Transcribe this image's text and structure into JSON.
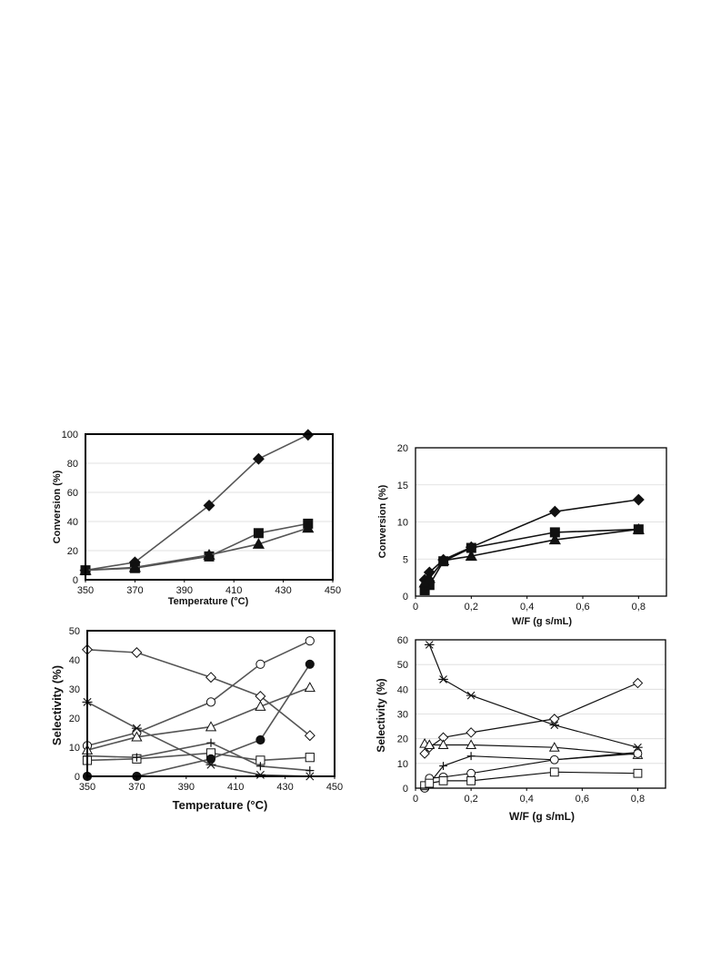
{
  "style": {
    "marker_color": "#111111",
    "left_line_color": "#555555",
    "right_line_color": "#111111",
    "grid_color": "#d9d9d9"
  },
  "chart_data": [
    {
      "id": "tl",
      "type": "line",
      "title": "",
      "xlabel": "Temperature (°C)",
      "ylabel": "Conversion (%)",
      "xlim": [
        350,
        450
      ],
      "ylim": [
        0,
        100
      ],
      "xticks": [
        350,
        370,
        390,
        410,
        430,
        450
      ],
      "yticks": [
        0,
        20,
        40,
        60,
        80,
        100
      ],
      "xtick_labels": [
        "350",
        "370",
        "390",
        "410",
        "430",
        "450"
      ],
      "ytick_labels": [
        "0",
        "20",
        "40",
        "60",
        "80",
        "100"
      ],
      "grid": true,
      "series": [
        {
          "marker": "diamond-filled",
          "x": [
            350,
            370,
            400,
            420,
            440
          ],
          "y": [
            6.5,
            12,
            51,
            83,
            99.5
          ]
        },
        {
          "marker": "square-filled",
          "x": [
            350,
            370,
            400,
            420,
            440
          ],
          "y": [
            6.5,
            8,
            16,
            32,
            38.5
          ]
        },
        {
          "marker": "triangle-filled",
          "x": [
            350,
            370,
            400,
            420,
            440
          ],
          "y": [
            6.5,
            8.5,
            17,
            24.5,
            35.5
          ]
        }
      ]
    },
    {
      "id": "tr",
      "type": "line",
      "title": "",
      "xlabel": "W/F (g s/mL)",
      "ylabel": "Conversion (%)",
      "xlim": [
        0,
        0.9
      ],
      "ylim": [
        0,
        20
      ],
      "xticks": [
        0,
        0.2,
        0.4,
        0.6,
        0.8
      ],
      "yticks": [
        0,
        5,
        10,
        15,
        20
      ],
      "xtick_labels": [
        "0",
        "0,2",
        "0,4",
        "0,6",
        "0,8"
      ],
      "ytick_labels": [
        "0",
        "5",
        "10",
        "15",
        "20"
      ],
      "grid": true,
      "series": [
        {
          "marker": "diamond-filled",
          "x": [
            0.033,
            0.05,
            0.1,
            0.2,
            0.5,
            0.8
          ],
          "y": [
            2.2,
            3.2,
            4.9,
            6.6,
            11.4,
            13
          ]
        },
        {
          "marker": "square-filled",
          "x": [
            0.033,
            0.05,
            0.1,
            0.2,
            0.5,
            0.8
          ],
          "y": [
            0.8,
            1.5,
            4.7,
            6.5,
            8.6,
            9
          ]
        },
        {
          "marker": "triangle-filled",
          "x": [
            0.033,
            0.05,
            0.1,
            0.2,
            0.5,
            0.8
          ],
          "y": [
            1.8,
            2.4,
            4.8,
            5.4,
            7.6,
            9
          ]
        }
      ]
    },
    {
      "id": "bl",
      "type": "line",
      "title": "",
      "xlabel": "Temperature (°C)",
      "ylabel": "Selectivity (%)",
      "xlim": [
        350,
        450
      ],
      "ylim": [
        0,
        50
      ],
      "xticks": [
        350,
        370,
        390,
        410,
        430,
        450
      ],
      "yticks": [
        0,
        10,
        20,
        30,
        40,
        50
      ],
      "xtick_labels": [
        "350",
        "370",
        "390",
        "410",
        "430",
        "450"
      ],
      "ytick_labels": [
        "0",
        "10",
        "20",
        "30",
        "40",
        "50"
      ],
      "grid": false,
      "series": [
        {
          "marker": "diamond-open",
          "x": [
            350,
            370,
            400,
            420,
            440
          ],
          "y": [
            43.5,
            42.5,
            34,
            27.5,
            14
          ]
        },
        {
          "marker": "circle-open",
          "x": [
            350,
            370,
            400,
            420,
            440
          ],
          "y": [
            10.5,
            15,
            25.5,
            38.5,
            46.5
          ]
        },
        {
          "marker": "triangle-open",
          "x": [
            350,
            370,
            400,
            420,
            440
          ],
          "y": [
            9,
            13.5,
            17,
            24,
            30.5
          ]
        },
        {
          "marker": "star",
          "x": [
            350,
            370,
            400,
            420,
            440
          ],
          "y": [
            25.5,
            16.5,
            4,
            0.5,
            0
          ]
        },
        {
          "marker": "square-open",
          "x": [
            350,
            370,
            400,
            420,
            440
          ],
          "y": [
            5.5,
            6,
            8,
            5.5,
            6.5
          ]
        },
        {
          "marker": "plus",
          "x": [
            350,
            370,
            400,
            420,
            440
          ],
          "y": [
            7,
            6.5,
            11.5,
            3.5,
            2
          ]
        },
        {
          "marker": "circle-filled",
          "x": [
            350,
            370,
            400,
            420,
            440
          ],
          "y": [
            0,
            0,
            6,
            12.5,
            38.5
          ]
        }
      ]
    },
    {
      "id": "br",
      "type": "line",
      "title": "",
      "xlabel": "W/F (g s/mL)",
      "ylabel": "Selectivity (%)",
      "xlim": [
        0,
        0.9
      ],
      "ylim": [
        0,
        60
      ],
      "xticks": [
        0,
        0.2,
        0.4,
        0.6,
        0.8
      ],
      "yticks": [
        0,
        10,
        20,
        30,
        40,
        50,
        60
      ],
      "xtick_labels": [
        "0",
        "0,2",
        "0,4",
        "0,6",
        "0,8"
      ],
      "ytick_labels": [
        "0",
        "10",
        "20",
        "30",
        "40",
        "50",
        "60"
      ],
      "grid": true,
      "series": [
        {
          "marker": "star",
          "x": [
            0.05,
            0.1,
            0.2,
            0.5,
            0.8
          ],
          "y": [
            58,
            44,
            37.5,
            25.5,
            16.5
          ]
        },
        {
          "marker": "diamond-open",
          "x": [
            0.033,
            0.05,
            0.1,
            0.2,
            0.5,
            0.8
          ],
          "y": [
            14,
            16.5,
            20.5,
            22.5,
            28,
            42.5
          ]
        },
        {
          "marker": "triangle-open",
          "x": [
            0.033,
            0.05,
            0.1,
            0.2,
            0.5,
            0.8
          ],
          "y": [
            18,
            17.5,
            17.5,
            17.5,
            16.5,
            13.5
          ]
        },
        {
          "marker": "plus",
          "x": [
            0.033,
            0.05,
            0.1,
            0.2,
            0.5,
            0.8
          ],
          "y": [
            1,
            2,
            9,
            13,
            11.5,
            14.5
          ]
        },
        {
          "marker": "circle-open",
          "x": [
            0.033,
            0.05,
            0.1,
            0.2,
            0.5,
            0.8
          ],
          "y": [
            0,
            4,
            4.5,
            6,
            11.5,
            14
          ]
        },
        {
          "marker": "square-open",
          "x": [
            0.033,
            0.05,
            0.1,
            0.2,
            0.5,
            0.8
          ],
          "y": [
            1,
            2,
            3,
            3,
            6.5,
            6
          ]
        }
      ]
    }
  ]
}
